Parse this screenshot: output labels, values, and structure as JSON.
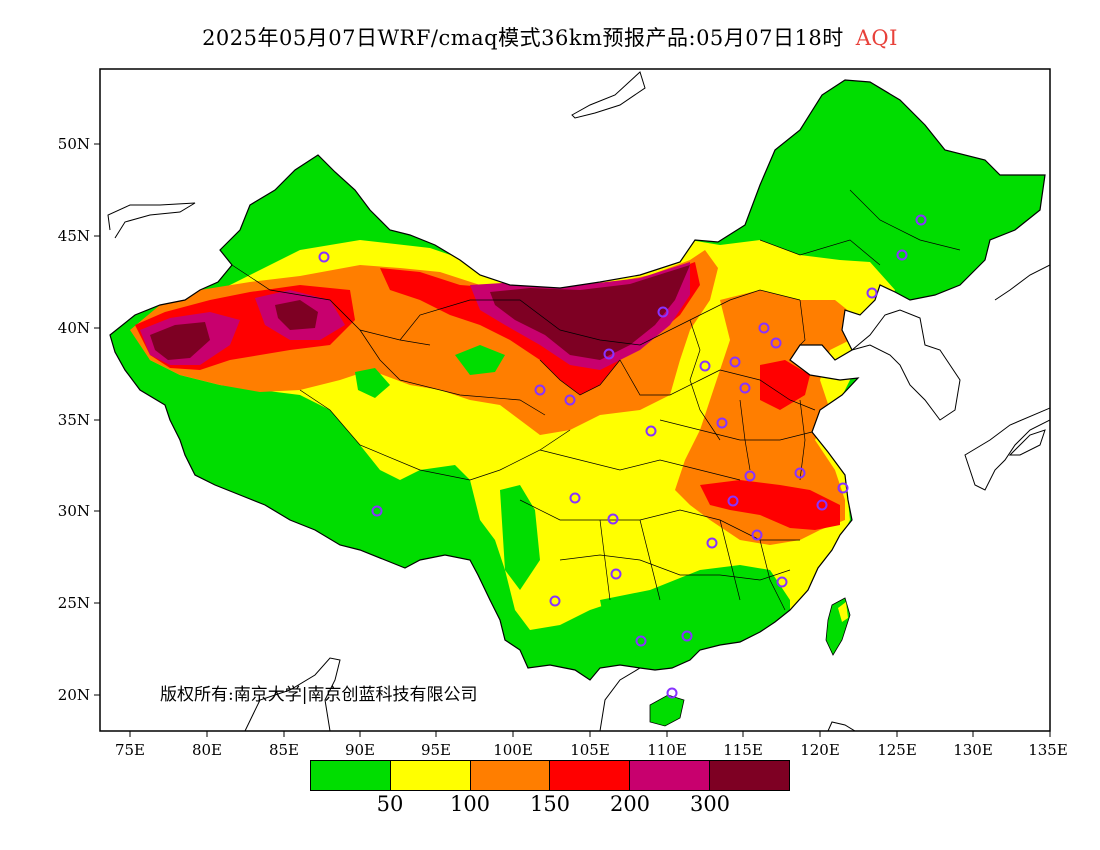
{
  "title": {
    "main": "2025年05月07日WRF/cmaq模式36km预报产品:05月07日18时",
    "variable": "AQI"
  },
  "axes": {
    "x_ticks": [
      "75E",
      "80E",
      "85E",
      "90E",
      "95E",
      "100E",
      "105E",
      "110E",
      "115E",
      "120E",
      "125E",
      "130E",
      "135E"
    ],
    "y_ticks": [
      "50N",
      "45N",
      "40N",
      "35N",
      "30N",
      "25N",
      "20N"
    ]
  },
  "legend": {
    "colors": [
      "#00dd00",
      "#ffff00",
      "#ff7e00",
      "#ff0000",
      "#c8006e",
      "#7e0023"
    ],
    "labels": [
      "50",
      "100",
      "150",
      "200",
      "300"
    ]
  },
  "copyright": "版权所有:南京大学|南京创蓝科技有限公司",
  "station_color": "#8833ff"
}
